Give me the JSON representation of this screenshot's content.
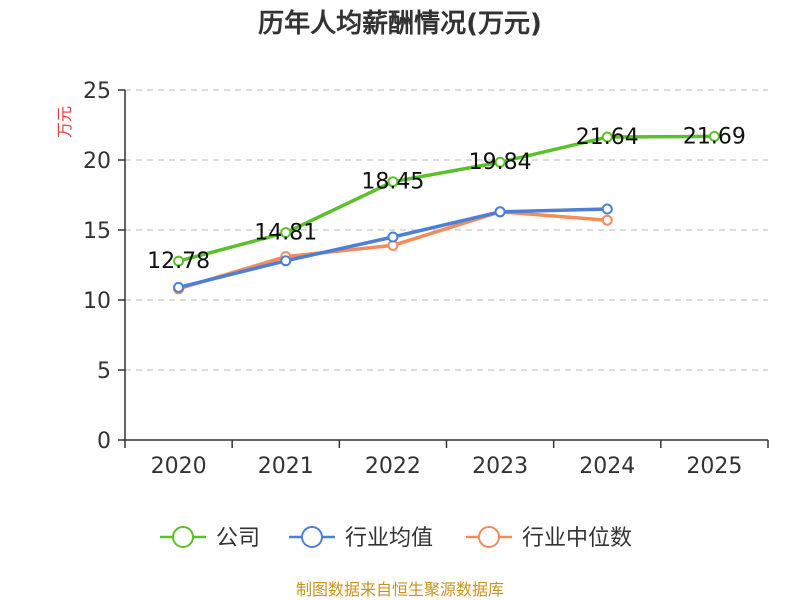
{
  "chart_data": {
    "type": "line",
    "title": "历年人均薪酬情况(万元)",
    "ylabel": "万元",
    "xlabel": "",
    "categories": [
      "2020",
      "2021",
      "2022",
      "2023",
      "2024",
      "2025"
    ],
    "ylim": [
      0,
      25
    ],
    "yticks": [
      0,
      5,
      10,
      15,
      20,
      25
    ],
    "grid": true,
    "legend_position": "bottom",
    "series": [
      {
        "name": "公司",
        "color": "#5cc02a",
        "values": [
          12.78,
          14.81,
          18.45,
          19.84,
          21.64,
          21.69
        ],
        "labels": [
          "12.78",
          "14.81",
          "18.45",
          "19.84",
          "21.64",
          "21.69"
        ]
      },
      {
        "name": "行业均值",
        "color": "#4d7fd6",
        "values": [
          10.9,
          12.8,
          14.5,
          16.3,
          16.5,
          null
        ]
      },
      {
        "name": "行业中位数",
        "color": "#f28c5a",
        "values": [
          10.8,
          13.1,
          13.9,
          16.3,
          15.7,
          null
        ]
      }
    ]
  },
  "source": "制图数据来自恒生聚源数据库"
}
